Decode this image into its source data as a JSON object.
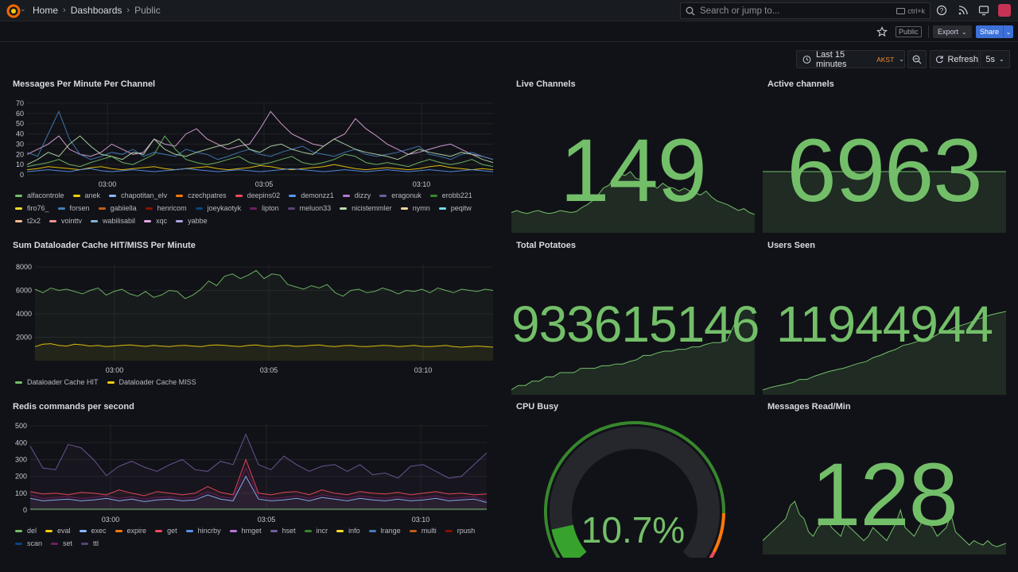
{
  "nav": {
    "breadcrumbs": [
      "Home",
      "Dashboards",
      "Public"
    ],
    "search_placeholder": "Search or jump to...",
    "search_shortcut": "ctrl+k"
  },
  "toolbar": {
    "public_badge": "Public",
    "export_label": "Export",
    "share_label": "Share"
  },
  "time": {
    "range_label": "Last 15 minutes",
    "timezone": "AKST",
    "refresh_label": "Refresh",
    "refresh_interval": "5s"
  },
  "panels": {
    "messages_per_minute": {
      "title": "Messages Per Minute Per Channel",
      "legend": [
        {
          "name": "alfacontrole",
          "color": "#73bf69"
        },
        {
          "name": "anek",
          "color": "#f2cc0c"
        },
        {
          "name": "chapotitan_elv",
          "color": "#8ab8ff"
        },
        {
          "name": "czechpatres",
          "color": "#ff780a"
        },
        {
          "name": "deepins02",
          "color": "#f2495c"
        },
        {
          "name": "demonzz1",
          "color": "#5794f2"
        },
        {
          "name": "dizzy",
          "color": "#b877d9"
        },
        {
          "name": "eragonuk",
          "color": "#705da0"
        },
        {
          "name": "erobb221",
          "color": "#37872d"
        },
        {
          "name": "firo76_",
          "color": "#fade2a"
        },
        {
          "name": "forsen",
          "color": "#447ebc"
        },
        {
          "name": "gabiiella",
          "color": "#c15c17"
        },
        {
          "name": "henricom",
          "color": "#890f02"
        },
        {
          "name": "joeykaotyk",
          "color": "#0a437c"
        },
        {
          "name": "lipton",
          "color": "#6d1f62"
        },
        {
          "name": "meluon33",
          "color": "#584477"
        },
        {
          "name": "nicistemmler",
          "color": "#b7dbab"
        },
        {
          "name": "nymn",
          "color": "#f4d598"
        },
        {
          "name": "peqitw",
          "color": "#70dbed"
        },
        {
          "name": "t2x2",
          "color": "#f9ba8f"
        },
        {
          "name": "vointtv",
          "color": "#f29191"
        },
        {
          "name": "wabilisabil",
          "color": "#82b5d8"
        },
        {
          "name": "xqc",
          "color": "#e5a8e2"
        },
        {
          "name": "yabbe",
          "color": "#aea2e0"
        }
      ]
    },
    "live_channels": {
      "title": "Live Channels",
      "value": "149"
    },
    "active_channels": {
      "title": "Active channels",
      "value": "6963"
    },
    "dataloader": {
      "title": "Sum Dataloader Cache HIT/MISS Per Minute",
      "legend": [
        {
          "name": "Dataloader Cache HIT",
          "color": "#73bf69"
        },
        {
          "name": "Dataloader Cache MISS",
          "color": "#f2cc0c"
        }
      ]
    },
    "total_potatoes": {
      "title": "Total Potatoes",
      "value": "933615146"
    },
    "users_seen": {
      "title": "Users Seen",
      "value": "11944944"
    },
    "redis": {
      "title": "Redis commands per second",
      "legend": [
        {
          "name": "del",
          "color": "#73bf69"
        },
        {
          "name": "eval",
          "color": "#f2cc0c"
        },
        {
          "name": "exec",
          "color": "#8ab8ff"
        },
        {
          "name": "expire",
          "color": "#ff780a"
        },
        {
          "name": "get",
          "color": "#f2495c"
        },
        {
          "name": "hincrby",
          "color": "#5794f2"
        },
        {
          "name": "hmget",
          "color": "#b877d9"
        },
        {
          "name": "hset",
          "color": "#705da0"
        },
        {
          "name": "incr",
          "color": "#37872d"
        },
        {
          "name": "info",
          "color": "#fade2a"
        },
        {
          "name": "lrange",
          "color": "#447ebc"
        },
        {
          "name": "multi",
          "color": "#c15c17"
        },
        {
          "name": "rpush",
          "color": "#890f02"
        },
        {
          "name": "scan",
          "color": "#0a437c"
        },
        {
          "name": "set",
          "color": "#6d1f62"
        },
        {
          "name": "ttl",
          "color": "#584477"
        }
      ]
    },
    "cpu_busy": {
      "title": "CPU Busy",
      "value": "10.7%",
      "percent": 10.7
    },
    "messages_read": {
      "title": "Messages Read/Min",
      "value": "128"
    }
  },
  "chart_data": [
    {
      "type": "line",
      "title": "Messages Per Minute Per Channel",
      "x_ticks": [
        "03:00",
        "03:05",
        "03:10"
      ],
      "y_ticks": [
        0,
        10,
        20,
        30,
        40,
        50,
        60,
        70
      ],
      "ylim": [
        0,
        70
      ],
      "series": [
        {
          "name": "xqc",
          "values": [
            20,
            25,
            30,
            38,
            25,
            20,
            18,
            22,
            30,
            25,
            20,
            22,
            35,
            30,
            28,
            40,
            45,
            35,
            30,
            25,
            28,
            30,
            45,
            62,
            50,
            40,
            35,
            30,
            28,
            35,
            40,
            55,
            45,
            38,
            30,
            25,
            20,
            22,
            25,
            28,
            30,
            25,
            20,
            18,
            15
          ]
        },
        {
          "name": "forsen",
          "values": [
            22,
            18,
            40,
            62,
            35,
            20,
            15,
            18,
            22,
            20,
            25,
            18,
            22,
            20,
            18,
            25,
            22,
            20,
            15,
            18,
            22,
            25,
            20,
            18,
            22,
            25,
            28,
            22,
            20,
            18,
            22,
            25,
            20,
            18,
            20,
            22,
            25,
            28,
            20,
            18,
            15,
            20,
            22,
            18,
            15
          ]
        },
        {
          "name": "nicistemmler",
          "values": [
            10,
            15,
            22,
            18,
            30,
            38,
            28,
            20,
            18,
            15,
            22,
            20,
            35,
            25,
            20,
            18,
            22,
            25,
            28,
            30,
            35,
            25,
            22,
            28,
            30,
            25,
            22,
            20,
            28,
            35,
            30,
            25,
            22,
            20,
            18,
            15,
            20,
            25,
            22,
            20,
            18,
            22,
            20,
            15,
            12
          ]
        },
        {
          "name": "alfacontrole",
          "values": [
            8,
            10,
            12,
            15,
            10,
            8,
            12,
            15,
            18,
            12,
            10,
            15,
            20,
            38,
            25,
            15,
            12,
            10,
            12,
            15,
            18,
            12,
            10,
            12,
            15,
            18,
            12,
            10,
            12,
            15,
            20,
            18,
            12,
            10,
            12,
            10,
            8,
            12,
            15,
            12,
            10,
            12,
            15,
            10,
            8
          ]
        },
        {
          "name": "anek",
          "values": [
            5,
            6,
            8,
            7,
            6,
            5,
            7,
            8,
            6,
            5,
            6,
            7,
            8,
            6,
            5,
            6,
            7,
            8,
            6,
            5,
            6,
            7,
            9,
            8,
            6,
            5,
            6,
            7,
            8,
            10,
            8,
            6,
            5,
            6,
            7,
            6,
            5,
            6,
            8,
            9,
            7,
            6,
            5,
            6,
            5
          ]
        },
        {
          "name": "demonzz1",
          "values": [
            3,
            4,
            5,
            4,
            3,
            5,
            6,
            4,
            3,
            4,
            5,
            4,
            3,
            4,
            5,
            6,
            5,
            4,
            3,
            4,
            5,
            4,
            3,
            4,
            5,
            6,
            5,
            4,
            3,
            4,
            5,
            4,
            3,
            4,
            5,
            4,
            3,
            4,
            5,
            4,
            3,
            4,
            5,
            4,
            3
          ]
        }
      ]
    },
    {
      "type": "area",
      "title": "Sum Dataloader Cache HIT/MISS Per Minute",
      "x_ticks": [
        "03:00",
        "03:05",
        "03:10"
      ],
      "y_ticks": [
        2000,
        4000,
        6000,
        8000
      ],
      "ylim": [
        0,
        8200
      ],
      "series": [
        {
          "name": "Dataloader Cache HIT",
          "values": [
            6100,
            5800,
            6200,
            6000,
            6100,
            5900,
            5700,
            6000,
            6200,
            5600,
            5900,
            6100,
            5700,
            5500,
            5900,
            5400,
            5600,
            6000,
            5900,
            5300,
            5600,
            6100,
            6800,
            6400,
            7200,
            7400,
            7000,
            7300,
            7700,
            7000,
            7400,
            7300,
            6500,
            6300,
            6100,
            6400,
            6200,
            6500,
            5800,
            5500,
            6000,
            6100,
            5800,
            5900,
            6200,
            6000,
            5700,
            6000,
            5900,
            6100,
            5800,
            6200,
            6000,
            5800,
            6100,
            6000,
            5900,
            6100,
            6000
          ]
        },
        {
          "name": "Dataloader Cache MISS",
          "values": [
            1200,
            1400,
            1450,
            1300,
            1250,
            1400,
            1350,
            1250,
            1300,
            1200,
            1250,
            1300,
            1350,
            1280,
            1220,
            1300,
            1250,
            1200,
            1280,
            1300,
            1250,
            1200,
            1300,
            1350,
            1300,
            1250,
            1200,
            1300,
            1350,
            1250,
            1200,
            1280,
            1300,
            1220,
            1250,
            1300,
            1350,
            1250,
            1200,
            1280,
            1300,
            1220,
            1200,
            1250,
            1300,
            1280,
            1200,
            1250,
            1300,
            1220,
            1200,
            1250,
            1300,
            1200,
            1150,
            1200,
            1250,
            1200,
            1150
          ]
        }
      ]
    },
    {
      "type": "line",
      "title": "Redis commands per second",
      "x_ticks": [
        "03:00",
        "03:05",
        "03:10"
      ],
      "y_ticks": [
        0,
        100,
        200,
        300,
        400,
        500
      ],
      "ylim": [
        0,
        510
      ],
      "series": [
        {
          "name": "hset",
          "values": [
            380,
            250,
            240,
            390,
            370,
            300,
            205,
            260,
            290,
            255,
            230,
            270,
            300,
            240,
            230,
            290,
            270,
            450,
            270,
            240,
            320,
            270,
            230,
            260,
            270,
            230,
            270,
            210,
            220,
            190,
            260,
            270,
            230,
            190,
            200,
            270,
            340
          ]
        },
        {
          "name": "get",
          "values": [
            110,
            95,
            100,
            90,
            105,
            100,
            90,
            120,
            100,
            85,
            110,
            100,
            90,
            100,
            140,
            105,
            90,
            300,
            100,
            90,
            105,
            110,
            90,
            120,
            100,
            90,
            110,
            100,
            95,
            105,
            90,
            100,
            110,
            95,
            100,
            90,
            95
          ]
        },
        {
          "name": "set",
          "values": [
            90,
            70,
            75,
            80,
            70,
            75,
            85,
            70,
            80,
            65,
            75,
            80,
            70,
            75,
            110,
            80,
            70,
            250,
            80,
            70,
            75,
            85,
            70,
            90,
            80,
            70,
            85,
            75,
            70,
            80,
            70,
            75,
            85,
            70,
            75,
            80,
            55
          ]
        },
        {
          "name": "exec",
          "values": [
            70,
            55,
            60,
            65,
            55,
            60,
            70,
            55,
            65,
            50,
            60,
            65,
            55,
            60,
            90,
            65,
            55,
            200,
            65,
            55,
            60,
            70,
            55,
            75,
            65,
            55,
            70,
            60,
            55,
            65,
            55,
            60,
            70,
            55,
            60,
            65,
            45
          ]
        },
        {
          "name": "del",
          "values": [
            5,
            5,
            5,
            5,
            5,
            5,
            5,
            5,
            5,
            5,
            5,
            5,
            5,
            5,
            5,
            5,
            5,
            5,
            5,
            5,
            5,
            5,
            5,
            5,
            5,
            5,
            5,
            5,
            5,
            5,
            5,
            5,
            5,
            5,
            5,
            5,
            5
          ]
        }
      ]
    },
    {
      "type": "area",
      "title": "Live Channels",
      "values": [
        20,
        22,
        20,
        19,
        21,
        22,
        20,
        19,
        20,
        22,
        21,
        20,
        21,
        25,
        28,
        32,
        38,
        45,
        48,
        55,
        60,
        58,
        62,
        55,
        54,
        50,
        48,
        45,
        50,
        46,
        45,
        42,
        45,
        42,
        40,
        38,
        42,
        36,
        32,
        30,
        28,
        25,
        22,
        24,
        20,
        18
      ]
    },
    {
      "type": "area",
      "title": "Active channels",
      "values": [
        50,
        50,
        50,
        50,
        50,
        50,
        50,
        50,
        50,
        50,
        50,
        50,
        50,
        50,
        50,
        50,
        50,
        50,
        50,
        50
      ]
    },
    {
      "type": "area",
      "title": "Total Potatoes",
      "values": [
        5,
        10,
        10,
        15,
        15,
        20,
        20,
        25,
        25,
        25,
        30,
        30,
        30,
        33,
        33,
        35,
        35,
        38,
        40,
        45,
        45,
        48,
        50,
        50,
        52,
        52,
        55,
        55,
        58,
        60,
        60,
        62,
        80,
        100,
        100,
        100
      ]
    },
    {
      "type": "area",
      "title": "Users Seen",
      "values": [
        5,
        8,
        10,
        12,
        14,
        18,
        18,
        22,
        25,
        28,
        30,
        32,
        35,
        38,
        40,
        45,
        48,
        52,
        55,
        60,
        62,
        65,
        68,
        70,
        75,
        78,
        82,
        85,
        88,
        92,
        95,
        98,
        100,
        102
      ]
    },
    {
      "type": "area",
      "title": "Messages Read/Min",
      "values": [
        15,
        20,
        25,
        30,
        35,
        40,
        55,
        60,
        45,
        40,
        25,
        20,
        30,
        35,
        40,
        30,
        25,
        20,
        35,
        30,
        25,
        20,
        15,
        20,
        30,
        25,
        20,
        15,
        25,
        35,
        50,
        30,
        25,
        20,
        30,
        40,
        35,
        30,
        20,
        25,
        30,
        45,
        25,
        20,
        15,
        10,
        15,
        12,
        10,
        15,
        10,
        8,
        10,
        12
      ]
    },
    {
      "type": "gauge",
      "title": "CPU Busy",
      "value": 10.7,
      "range": [
        0,
        100
      ],
      "thresholds": [
        {
          "from": 0,
          "to": 85,
          "color": "#37872d"
        },
        {
          "from": 85,
          "to": 95,
          "color": "#ff780a"
        },
        {
          "from": 95,
          "to": 100,
          "color": "#f2495c"
        }
      ]
    }
  ]
}
